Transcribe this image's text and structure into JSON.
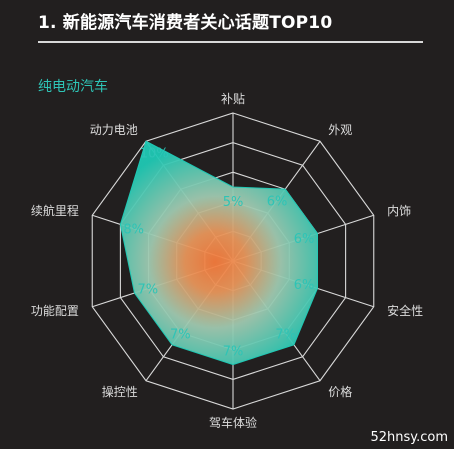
{
  "header": {
    "title": "1. 新能源汽车消费者关心话题TOP10"
  },
  "chart_data": {
    "type": "radar",
    "title": "",
    "subtitle": "纯电动汽车",
    "categories": [
      "补贴",
      "外观",
      "内饰",
      "安全性",
      "价格",
      "驾车体验",
      "操控性",
      "功能配置",
      "续航里程",
      "动力电池"
    ],
    "series": [
      {
        "values": [
          5,
          6,
          6,
          6,
          7,
          7,
          7,
          7,
          8,
          10
        ]
      }
    ],
    "data_labels": [
      "5%",
      "6%",
      "6%",
      "6%",
      "7%",
      "7%",
      "7%",
      "7%",
      "8%",
      "10%"
    ],
    "rmax": 10,
    "rings": 5,
    "colors": {
      "fill_inner": "#f47a3c",
      "fill_outer": "#1fc8b4",
      "grid": "#d9d9d9",
      "labels": "#2ec4b6"
    }
  },
  "watermark": "52hnsy.com"
}
